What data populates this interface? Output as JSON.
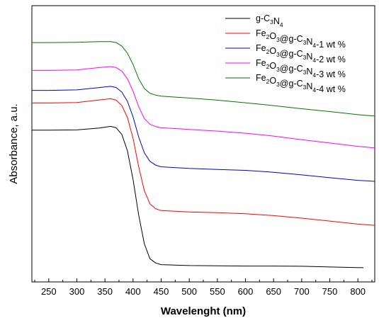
{
  "chart_data": {
    "type": "line",
    "xlabel": "Wavelenght (nm)",
    "ylabel": "Absorbance, a.u.",
    "xlim": [
      220,
      830
    ],
    "ylim": [
      0,
      1
    ],
    "x_ticks": [
      250,
      300,
      350,
      400,
      450,
      500,
      550,
      600,
      650,
      700,
      750,
      800
    ],
    "y_ticks_labeled": false,
    "grid": false,
    "legend_position": "top-right",
    "series": [
      {
        "name": "g-C3N4",
        "legend": [
          [
            "g-C",
            ""
          ],
          [
            "3",
            "sub"
          ],
          [
            "N",
            ""
          ],
          [
            "4",
            "sub"
          ]
        ],
        "color": "#000000",
        "x_end": 810,
        "points": [
          [
            220,
            0.602
          ],
          [
            250,
            0.602
          ],
          [
            300,
            0.603
          ],
          [
            340,
            0.611
          ],
          [
            360,
            0.618
          ],
          [
            370,
            0.612
          ],
          [
            380,
            0.584
          ],
          [
            390,
            0.515
          ],
          [
            400,
            0.395
          ],
          [
            410,
            0.245
          ],
          [
            420,
            0.125
          ],
          [
            430,
            0.062
          ],
          [
            440,
            0.044
          ],
          [
            450,
            0.037
          ],
          [
            500,
            0.033
          ],
          [
            550,
            0.032
          ],
          [
            600,
            0.031
          ],
          [
            650,
            0.031
          ],
          [
            700,
            0.03
          ],
          [
            750,
            0.027
          ],
          [
            810,
            0.024
          ]
        ]
      },
      {
        "name": "Fe2O3@g-C3N4-1 wt %",
        "legend": [
          [
            "Fe",
            ""
          ],
          [
            "2",
            "sub"
          ],
          [
            "O",
            ""
          ],
          [
            "3",
            "sub"
          ],
          [
            "@g-C",
            ""
          ],
          [
            "3",
            "sub"
          ],
          [
            "N",
            ""
          ],
          [
            "4",
            "sub"
          ],
          [
            "-1 wt %",
            ""
          ]
        ],
        "color": "#ff0000",
        "x_end": 830,
        "points": [
          [
            220,
            0.716
          ],
          [
            250,
            0.716
          ],
          [
            300,
            0.718
          ],
          [
            340,
            0.729
          ],
          [
            360,
            0.734
          ],
          [
            370,
            0.728
          ],
          [
            380,
            0.705
          ],
          [
            390,
            0.655
          ],
          [
            400,
            0.568
          ],
          [
            410,
            0.448
          ],
          [
            420,
            0.348
          ],
          [
            430,
            0.293
          ],
          [
            440,
            0.272
          ],
          [
            450,
            0.264
          ],
          [
            500,
            0.258
          ],
          [
            550,
            0.255
          ],
          [
            600,
            0.251
          ],
          [
            650,
            0.243
          ],
          [
            700,
            0.232
          ],
          [
            750,
            0.22
          ],
          [
            800,
            0.207
          ],
          [
            830,
            0.202
          ]
        ]
      },
      {
        "name": "Fe2O3@g-C3N4-2 wt %",
        "legend": [
          [
            "Fe",
            ""
          ],
          [
            "2",
            "sub"
          ],
          [
            "O",
            ""
          ],
          [
            "3",
            "sub"
          ],
          [
            "@g-C",
            ""
          ],
          [
            "3",
            "sub"
          ],
          [
            "N",
            ""
          ],
          [
            "4",
            "sub"
          ],
          [
            "-2 wt %",
            ""
          ]
        ],
        "color": "#0000cc",
        "x_end": 830,
        "points": [
          [
            220,
            0.769
          ],
          [
            250,
            0.769
          ],
          [
            300,
            0.771
          ],
          [
            340,
            0.781
          ],
          [
            360,
            0.786
          ],
          [
            370,
            0.781
          ],
          [
            380,
            0.762
          ],
          [
            390,
            0.723
          ],
          [
            400,
            0.658
          ],
          [
            410,
            0.573
          ],
          [
            420,
            0.507
          ],
          [
            430,
            0.471
          ],
          [
            440,
            0.455
          ],
          [
            450,
            0.448
          ],
          [
            500,
            0.441
          ],
          [
            550,
            0.437
          ],
          [
            600,
            0.433
          ],
          [
            650,
            0.425
          ],
          [
            700,
            0.414
          ],
          [
            750,
            0.402
          ],
          [
            800,
            0.391
          ],
          [
            830,
            0.387
          ]
        ]
      },
      {
        "name": "Fe2O3@g-C3N4-3 wt %",
        "legend": [
          [
            "Fe",
            ""
          ],
          [
            "2",
            "sub"
          ],
          [
            "O",
            ""
          ],
          [
            "3",
            "sub"
          ],
          [
            "@g-C",
            ""
          ],
          [
            "3",
            "sub"
          ],
          [
            "N",
            ""
          ],
          [
            "4",
            "sub"
          ],
          [
            "-3 wt %",
            ""
          ]
        ],
        "color": "#ff00ff",
        "x_end": 830,
        "points": [
          [
            220,
            0.853
          ],
          [
            250,
            0.853
          ],
          [
            300,
            0.855
          ],
          [
            340,
            0.865
          ],
          [
            360,
            0.869
          ],
          [
            370,
            0.865
          ],
          [
            380,
            0.85
          ],
          [
            390,
            0.818
          ],
          [
            400,
            0.766
          ],
          [
            410,
            0.7
          ],
          [
            420,
            0.651
          ],
          [
            430,
            0.627
          ],
          [
            440,
            0.617
          ],
          [
            450,
            0.612
          ],
          [
            500,
            0.605
          ],
          [
            550,
            0.598
          ],
          [
            600,
            0.589
          ],
          [
            650,
            0.577
          ],
          [
            700,
            0.562
          ],
          [
            750,
            0.548
          ],
          [
            800,
            0.534
          ],
          [
            830,
            0.527
          ]
        ]
      },
      {
        "name": "Fe2O3@g-C3N4-4 wt %",
        "legend": [
          [
            "Fe",
            ""
          ],
          [
            "2",
            "sub"
          ],
          [
            "O",
            ""
          ],
          [
            "3",
            "sub"
          ],
          [
            "@g-C",
            ""
          ],
          [
            "3",
            "sub"
          ],
          [
            "N",
            ""
          ],
          [
            "4",
            "sub"
          ],
          [
            "-4 wt %",
            ""
          ]
        ],
        "color": "#007700",
        "x_end": 830,
        "points": [
          [
            220,
            0.97
          ],
          [
            250,
            0.97
          ],
          [
            300,
            0.971
          ],
          [
            340,
            0.974
          ],
          [
            360,
            0.974
          ],
          [
            370,
            0.97
          ],
          [
            380,
            0.955
          ],
          [
            390,
            0.925
          ],
          [
            400,
            0.878
          ],
          [
            410,
            0.818
          ],
          [
            420,
            0.777
          ],
          [
            430,
            0.757
          ],
          [
            440,
            0.749
          ],
          [
            450,
            0.745
          ],
          [
            500,
            0.737
          ],
          [
            550,
            0.728
          ],
          [
            600,
            0.717
          ],
          [
            650,
            0.705
          ],
          [
            700,
            0.692
          ],
          [
            750,
            0.68
          ],
          [
            800,
            0.667
          ],
          [
            830,
            0.661
          ]
        ]
      }
    ]
  }
}
